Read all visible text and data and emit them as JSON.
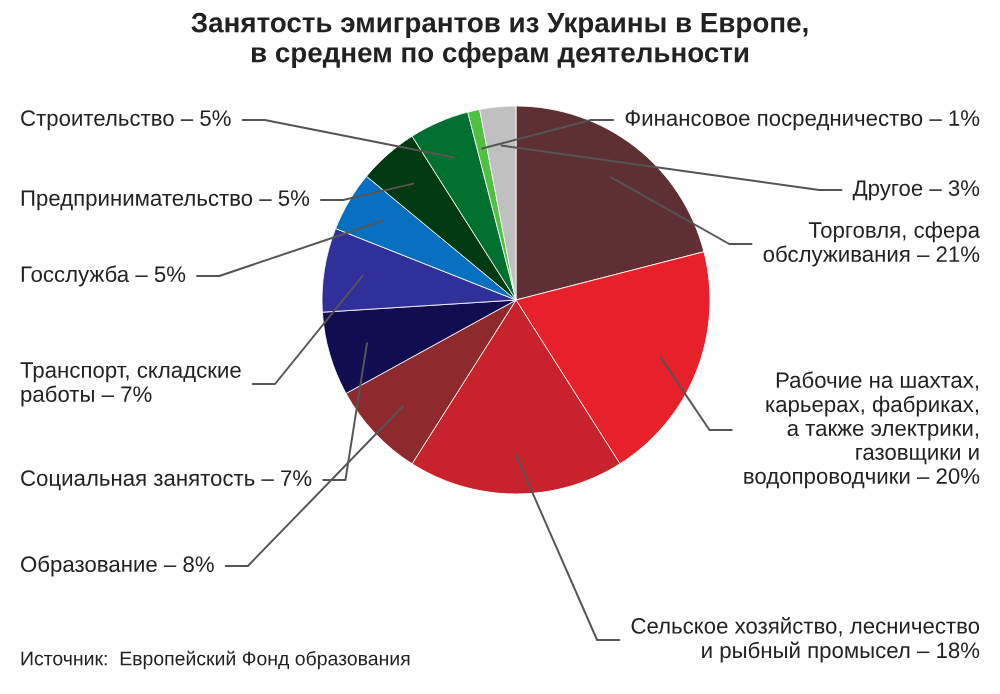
{
  "chart_data": {
    "type": "pie",
    "title": "Занятость эмигрантов из Украины в Европе,\nв среднем по сферам деятельности",
    "categories": [
      "Торговля, сфера\nобслуживания – 21%",
      "Рабочие на шахтах,\nкарьерах, фабриках,\nа также электрики,\nгазовщики и\nводопроводчики – 20%",
      "Сельское хозяйство, лесничество\nи рыбный промысел – 18%",
      "Образование – 8%",
      "Социальная занятость – 7%",
      "Транспорт, складские\nработы – 7%",
      "Госслужба – 5%",
      "Предпринимательство – 5%",
      "Строительство – 5%",
      "Финансовое посредничество – 1%",
      "Другое – 3%"
    ],
    "values": [
      21,
      20,
      18,
      8,
      7,
      7,
      5,
      5,
      5,
      1,
      3
    ],
    "colors": [
      "#5e3033",
      "#e8202a",
      "#c8222c",
      "#8e2a2e",
      "#120c50",
      "#30309a",
      "#0870c0",
      "#003a10",
      "#007030",
      "#50c040",
      "#c0c0c0"
    ],
    "annotations": [
      "Источник:  Европейский Фонд образования"
    ]
  }
}
